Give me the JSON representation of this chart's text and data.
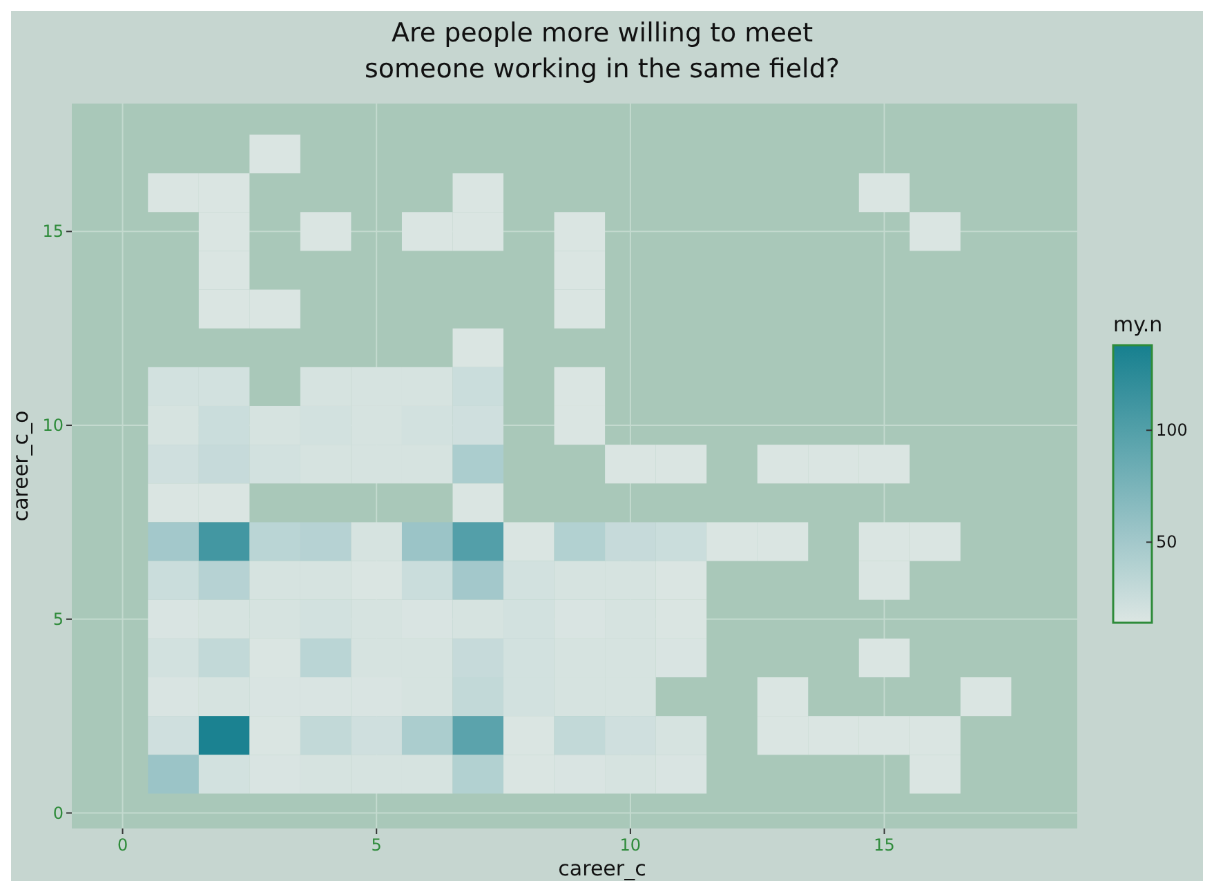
{
  "chart_data": {
    "type": "heatmap",
    "title": "Are people more willing to meet\nsomeone working in the same field?",
    "xlabel": "career_c",
    "ylabel": "career_c_o",
    "clabel": "my.n",
    "x": [
      1,
      2,
      3,
      4,
      5,
      6,
      7,
      8,
      9,
      10,
      11,
      12,
      13,
      14,
      15,
      16,
      17
    ],
    "y": [
      17,
      16,
      15,
      14,
      13,
      12,
      11,
      10,
      9,
      8,
      7,
      6,
      5,
      4,
      3,
      2,
      1
    ],
    "cells": [
      [
        null,
        null,
        15,
        null,
        null,
        null,
        null,
        null,
        null,
        null,
        null,
        null,
        null,
        null,
        null,
        null,
        null
      ],
      [
        15,
        15,
        null,
        null,
        null,
        null,
        15,
        null,
        null,
        null,
        null,
        null,
        null,
        null,
        15,
        null,
        null
      ],
      [
        null,
        15,
        null,
        15,
        null,
        15,
        15,
        null,
        15,
        null,
        null,
        null,
        null,
        null,
        null,
        15,
        null
      ],
      [
        null,
        15,
        null,
        null,
        null,
        null,
        null,
        null,
        15,
        null,
        null,
        null,
        null,
        null,
        null,
        null,
        null
      ],
      [
        null,
        15,
        15,
        null,
        null,
        null,
        null,
        null,
        15,
        null,
        null,
        null,
        null,
        null,
        null,
        null,
        null
      ],
      [
        null,
        null,
        null,
        null,
        null,
        null,
        15,
        null,
        null,
        null,
        null,
        null,
        null,
        null,
        null,
        null,
        null
      ],
      [
        20,
        20,
        null,
        18,
        18,
        18,
        25,
        null,
        15,
        null,
        null,
        null,
        null,
        null,
        null,
        null,
        null
      ],
      [
        18,
        25,
        18,
        20,
        18,
        20,
        22,
        null,
        15,
        null,
        null,
        null,
        null,
        null,
        null,
        null,
        null
      ],
      [
        22,
        28,
        20,
        18,
        18,
        18,
        45,
        null,
        null,
        15,
        15,
        null,
        15,
        15,
        15,
        null,
        null
      ],
      [
        15,
        15,
        null,
        null,
        null,
        null,
        15,
        null,
        null,
        null,
        null,
        null,
        null,
        null,
        null,
        null,
        null
      ],
      [
        50,
        110,
        35,
        38,
        18,
        55,
        100,
        15,
        40,
        28,
        25,
        15,
        15,
        null,
        15,
        15,
        null
      ],
      [
        25,
        38,
        18,
        18,
        15,
        25,
        50,
        20,
        18,
        18,
        15,
        null,
        null,
        null,
        15,
        null,
        null
      ],
      [
        16,
        18,
        18,
        20,
        18,
        16,
        18,
        20,
        16,
        18,
        15,
        null,
        null,
        null,
        null,
        null,
        null
      ],
      [
        20,
        30,
        15,
        35,
        18,
        18,
        28,
        20,
        18,
        18,
        16,
        null,
        null,
        null,
        15,
        null,
        null
      ],
      [
        16,
        18,
        16,
        16,
        16,
        18,
        30,
        20,
        18,
        18,
        null,
        null,
        15,
        null,
        null,
        null,
        15
      ],
      [
        22,
        135,
        15,
        30,
        22,
        45,
        95,
        15,
        30,
        22,
        18,
        null,
        15,
        15,
        15,
        15,
        null
      ],
      [
        55,
        20,
        16,
        18,
        18,
        18,
        40,
        15,
        16,
        18,
        16,
        null,
        null,
        null,
        null,
        15,
        null
      ]
    ],
    "xlim": [
      -1,
      18.8
    ],
    "ylim": [
      -0.4,
      18.3
    ],
    "xticks": [
      0,
      5,
      10,
      15
    ],
    "yticks": [
      0,
      5,
      10,
      15
    ],
    "clim": [
      14,
      138
    ],
    "cticks": [
      50,
      100
    ],
    "grid": true
  }
}
